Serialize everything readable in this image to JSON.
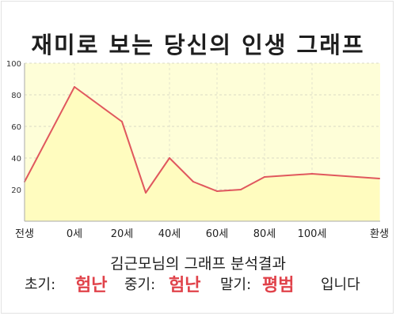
{
  "title": "재미로 보는 당신의 인생 그래프",
  "summary": "김근모님의 그래프 분석결과",
  "result": {
    "early_label": "초기:",
    "early_value": "험난",
    "middle_label": "중기:",
    "middle_value": "험난",
    "late_label": "말기:",
    "late_value": "평범",
    "ending": "입니다"
  },
  "colors": {
    "plot_bg": "#fefed8",
    "area_fill": "#fffcbf",
    "line": "#e0585e",
    "highlight": "#e0424a"
  },
  "chart_data": {
    "type": "area",
    "title": "",
    "xlabel": "",
    "ylabel": "",
    "x_ticks": [
      "전생",
      "0세",
      "20세",
      "40세",
      "60세",
      "80세",
      "100세",
      "환생"
    ],
    "y_ticks": [
      20,
      40,
      60,
      80,
      100
    ],
    "ylim": [
      0,
      100
    ],
    "grid": true,
    "legend": "none",
    "series": [
      {
        "points": [
          [
            "전생",
            25
          ],
          [
            "0세",
            85
          ],
          [
            "20세",
            63
          ],
          [
            "30세",
            18
          ],
          [
            "40세",
            40
          ],
          [
            "50세",
            25
          ],
          [
            "60세",
            19
          ],
          [
            "70세",
            20
          ],
          [
            "80세",
            28
          ],
          [
            "100세",
            30
          ],
          [
            "환생",
            27
          ]
        ]
      }
    ]
  }
}
